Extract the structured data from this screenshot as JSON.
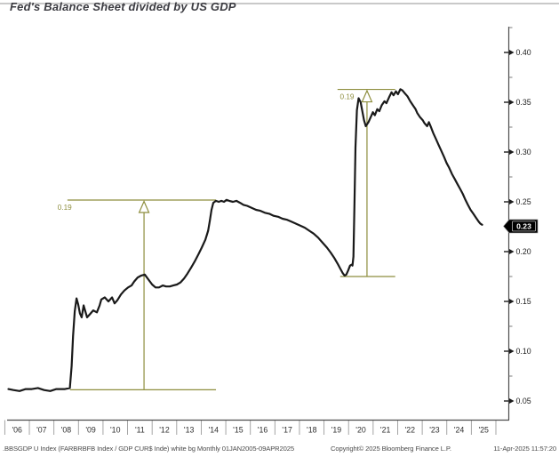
{
  "chart_data": {
    "type": "line",
    "title": "Fed's Balance Sheet divided by US GDP",
    "grid": false,
    "legend": "none",
    "axis_color": "#4d4d4d",
    "annotation_color": "#8e8e3e",
    "x_axis": {
      "tick_labels": [
        "'06",
        "'07",
        "'08",
        "'09",
        "'10",
        "'11",
        "'12",
        "'13",
        "'14",
        "'15",
        "'16",
        "'17",
        "'18",
        "'19",
        "'20",
        "'21",
        "'22",
        "'23",
        "'24",
        "'25"
      ],
      "tick_years": [
        2006,
        2007,
        2008,
        2009,
        2010,
        2011,
        2012,
        2013,
        2014,
        2015,
        2016,
        2017,
        2018,
        2019,
        2020,
        2021,
        2022,
        2023,
        2024,
        2025
      ],
      "range_note": "Monthly 01JAN2005-09APR2025"
    },
    "y_axis": {
      "side": "right",
      "major_ticks": [
        0.4,
        0.35,
        0.3,
        0.25,
        0.2,
        0.15,
        0.1,
        0.05
      ],
      "minor_ticks": [
        0.425,
        0.375,
        0.325,
        0.275,
        0.225,
        0.175,
        0.125,
        0.075
      ],
      "ylim": [
        0.031,
        0.426
      ],
      "last_price_label": "0.23",
      "last_price_value": 0.2255
    },
    "series": [
      {
        "name": ".BBSGDP U Index",
        "color": "#1a1a1a",
        "points": [
          [
            2006.15,
            0.062
          ],
          [
            2006.35,
            0.061
          ],
          [
            2006.6,
            0.06
          ],
          [
            2006.85,
            0.062
          ],
          [
            2007.1,
            0.062
          ],
          [
            2007.35,
            0.063
          ],
          [
            2007.6,
            0.061
          ],
          [
            2007.85,
            0.06
          ],
          [
            2008.1,
            0.062
          ],
          [
            2008.45,
            0.062
          ],
          [
            2008.65,
            0.063
          ],
          [
            2008.72,
            0.085
          ],
          [
            2008.78,
            0.115
          ],
          [
            2008.85,
            0.14
          ],
          [
            2008.92,
            0.153
          ],
          [
            2008.99,
            0.147
          ],
          [
            2009.06,
            0.138
          ],
          [
            2009.13,
            0.134
          ],
          [
            2009.21,
            0.146
          ],
          [
            2009.28,
            0.14
          ],
          [
            2009.35,
            0.134
          ],
          [
            2009.46,
            0.137
          ],
          [
            2009.6,
            0.141
          ],
          [
            2009.75,
            0.139
          ],
          [
            2009.86,
            0.146
          ],
          [
            2009.93,
            0.152
          ],
          [
            2010.07,
            0.154
          ],
          [
            2010.22,
            0.15
          ],
          [
            2010.37,
            0.154
          ],
          [
            2010.47,
            0.148
          ],
          [
            2010.58,
            0.151
          ],
          [
            2010.73,
            0.157
          ],
          [
            2010.87,
            0.161
          ],
          [
            2011.02,
            0.164
          ],
          [
            2011.16,
            0.166
          ],
          [
            2011.27,
            0.17
          ],
          [
            2011.41,
            0.174
          ],
          [
            2011.56,
            0.176
          ],
          [
            2011.7,
            0.177
          ],
          [
            2011.85,
            0.172
          ],
          [
            2012.0,
            0.167
          ],
          [
            2012.14,
            0.164
          ],
          [
            2012.28,
            0.164
          ],
          [
            2012.43,
            0.166
          ],
          [
            2012.57,
            0.165
          ],
          [
            2012.72,
            0.165
          ],
          [
            2012.86,
            0.166
          ],
          [
            2013.01,
            0.167
          ],
          [
            2013.15,
            0.169
          ],
          [
            2013.3,
            0.173
          ],
          [
            2013.44,
            0.178
          ],
          [
            2013.59,
            0.184
          ],
          [
            2013.73,
            0.19
          ],
          [
            2013.88,
            0.197
          ],
          [
            2014.02,
            0.204
          ],
          [
            2014.17,
            0.212
          ],
          [
            2014.28,
            0.221
          ],
          [
            2014.35,
            0.231
          ],
          [
            2014.42,
            0.242
          ],
          [
            2014.49,
            0.249
          ],
          [
            2014.6,
            0.251
          ],
          [
            2014.71,
            0.25
          ],
          [
            2014.82,
            0.251
          ],
          [
            2014.93,
            0.25
          ],
          [
            2015.03,
            0.252
          ],
          [
            2015.14,
            0.251
          ],
          [
            2015.29,
            0.25
          ],
          [
            2015.43,
            0.251
          ],
          [
            2015.58,
            0.249
          ],
          [
            2015.72,
            0.247
          ],
          [
            2015.87,
            0.246
          ],
          [
            2016.05,
            0.244
          ],
          [
            2016.23,
            0.242
          ],
          [
            2016.41,
            0.241
          ],
          [
            2016.59,
            0.239
          ],
          [
            2016.77,
            0.238
          ],
          [
            2016.95,
            0.236
          ],
          [
            2017.13,
            0.235
          ],
          [
            2017.31,
            0.233
          ],
          [
            2017.5,
            0.232
          ],
          [
            2017.68,
            0.23
          ],
          [
            2017.86,
            0.228
          ],
          [
            2018.04,
            0.226
          ],
          [
            2018.22,
            0.224
          ],
          [
            2018.4,
            0.221
          ],
          [
            2018.58,
            0.218
          ],
          [
            2018.76,
            0.214
          ],
          [
            2018.94,
            0.209
          ],
          [
            2019.12,
            0.204
          ],
          [
            2019.27,
            0.199
          ],
          [
            2019.41,
            0.194
          ],
          [
            2019.55,
            0.188
          ],
          [
            2019.66,
            0.183
          ],
          [
            2019.77,
            0.178
          ],
          [
            2019.84,
            0.176
          ],
          [
            2019.91,
            0.177
          ],
          [
            2019.98,
            0.181
          ],
          [
            2020.06,
            0.186
          ],
          [
            2020.13,
            0.187
          ],
          [
            2020.16,
            0.186
          ],
          [
            2020.2,
            0.195
          ],
          [
            2020.24,
            0.25
          ],
          [
            2020.28,
            0.305
          ],
          [
            2020.34,
            0.342
          ],
          [
            2020.41,
            0.354
          ],
          [
            2020.49,
            0.35
          ],
          [
            2020.56,
            0.341
          ],
          [
            2020.63,
            0.332
          ],
          [
            2020.7,
            0.326
          ],
          [
            2020.81,
            0.33
          ],
          [
            2020.92,
            0.336
          ],
          [
            2020.99,
            0.34
          ],
          [
            2021.07,
            0.337
          ],
          [
            2021.17,
            0.343
          ],
          [
            2021.25,
            0.341
          ],
          [
            2021.35,
            0.347
          ],
          [
            2021.46,
            0.351
          ],
          [
            2021.54,
            0.349
          ],
          [
            2021.65,
            0.355
          ],
          [
            2021.75,
            0.36
          ],
          [
            2021.83,
            0.357
          ],
          [
            2021.93,
            0.361
          ],
          [
            2022.01,
            0.358
          ],
          [
            2022.11,
            0.363
          ],
          [
            2022.19,
            0.362
          ],
          [
            2022.29,
            0.359
          ],
          [
            2022.4,
            0.356
          ],
          [
            2022.51,
            0.351
          ],
          [
            2022.62,
            0.347
          ],
          [
            2022.73,
            0.343
          ],
          [
            2022.8,
            0.339
          ],
          [
            2022.91,
            0.335
          ],
          [
            2023.02,
            0.332
          ],
          [
            2023.09,
            0.329
          ],
          [
            2023.2,
            0.326
          ],
          [
            2023.27,
            0.33
          ],
          [
            2023.34,
            0.326
          ],
          [
            2023.45,
            0.319
          ],
          [
            2023.56,
            0.313
          ],
          [
            2023.67,
            0.307
          ],
          [
            2023.78,
            0.301
          ],
          [
            2023.89,
            0.295
          ],
          [
            2023.99,
            0.289
          ],
          [
            2024.1,
            0.284
          ],
          [
            2024.21,
            0.278
          ],
          [
            2024.32,
            0.273
          ],
          [
            2024.43,
            0.268
          ],
          [
            2024.54,
            0.263
          ],
          [
            2024.65,
            0.258
          ],
          [
            2024.76,
            0.252
          ],
          [
            2024.86,
            0.247
          ],
          [
            2024.97,
            0.242
          ],
          [
            2025.08,
            0.238
          ],
          [
            2025.19,
            0.234
          ],
          [
            2025.3,
            0.23
          ],
          [
            2025.37,
            0.228
          ],
          [
            2025.44,
            0.227
          ]
        ]
      }
    ],
    "annotations": [
      {
        "label": "0.19",
        "from_value": 0.0613,
        "to_value": 0.2518,
        "span_start_year": 2008.55,
        "span_end_year": 2014.6,
        "arrow_year": 2011.67,
        "label_year": 2008.15
      },
      {
        "label": "0.19",
        "from_value": 0.175,
        "to_value": 0.3629,
        "span_start_year": 2019.55,
        "span_end_year": 2021.9,
        "arrow_year": 2020.75,
        "label_year": 2019.65
      }
    ],
    "footer": {
      "left": ".BBSGDP U Index (FARBRBFB Index / GDP CUR$ Inde) white bg  Monthly 01JAN2005-09APR2025",
      "copyright": "Copyright© 2025 Bloomberg Finance L.P.",
      "timestamp": "11-Apr-2025 11:57:20"
    }
  }
}
